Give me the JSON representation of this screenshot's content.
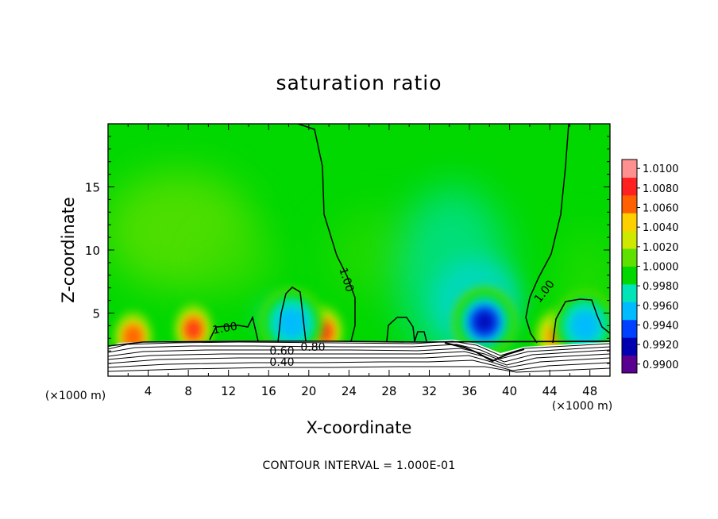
{
  "chart_data": {
    "type": "heatmap",
    "title": "saturation ratio",
    "xlabel": "X-coordinate",
    "ylabel": "Z-coordinate",
    "xlim": [
      0,
      50
    ],
    "ylim": [
      0,
      20
    ],
    "x_unit_left": "(×1000 m)",
    "x_unit_right": "(×1000 m)",
    "x_ticks": [
      4,
      8,
      12,
      16,
      20,
      24,
      28,
      32,
      36,
      40,
      44,
      48
    ],
    "x_tick_labels": [
      "4",
      "8",
      "12",
      "16",
      "20",
      "24",
      "28",
      "32",
      "36",
      "40",
      "44",
      "48"
    ],
    "y_ticks": [
      5,
      10,
      15
    ],
    "y_tick_labels": [
      "5",
      "10",
      "15"
    ],
    "colorbar": {
      "min": 0.99,
      "max": 1.01,
      "levels": [
        0.99,
        0.992,
        0.994,
        0.996,
        0.998,
        1.0,
        1.002,
        1.004,
        1.006,
        1.008,
        1.01
      ],
      "labels": [
        "0.9900",
        "0.9920",
        "0.9940",
        "0.9960",
        "0.9980",
        "1.0000",
        "1.0020",
        "1.0040",
        "1.0060",
        "1.0080",
        "1.0100"
      ],
      "colors": [
        "#5a0090",
        "#0000b0",
        "#0040ff",
        "#00bbff",
        "#00e4b8",
        "#00d800",
        "#5ee000",
        "#cfe800",
        "#ffd000",
        "#ff6000",
        "#ff2020",
        "#ff9090"
      ]
    },
    "contour_labels": [
      "1.00",
      "1.00",
      "1.00",
      "0.80",
      "0.60",
      "0.40"
    ],
    "contour_interval_text": "CONTOUR INTERVAL = 1.000E-01",
    "features": [
      {
        "kind": "high",
        "x": 8.5,
        "z": 3.7,
        "value": 1.009
      },
      {
        "kind": "high",
        "x": 21.5,
        "z": 3.5,
        "value": 1.008
      },
      {
        "kind": "high",
        "x": 2.5,
        "z": 3.1,
        "value": 1.007
      },
      {
        "kind": "high",
        "x": 44.5,
        "z": 3.2,
        "value": 1.006
      },
      {
        "kind": "low",
        "x": 37.5,
        "z": 4.3,
        "value": 0.9925
      },
      {
        "kind": "low",
        "x": 18.3,
        "z": 4.2,
        "value": 0.995
      },
      {
        "kind": "low",
        "x": 47.5,
        "z": 4.0,
        "value": 0.995
      }
    ]
  }
}
